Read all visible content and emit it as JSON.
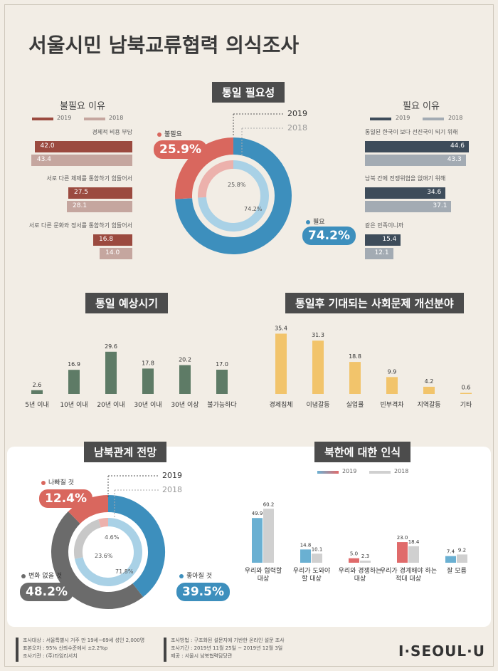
{
  "title": "서울시민 남북교류협력 의식조사",
  "necessity": {
    "title": "통일 필요성",
    "year2019": "2019",
    "year2018": "2018",
    "unneeded_label": "불필요",
    "needed_label": "필요",
    "pill_unneeded": "25.9%",
    "pill_needed": "74.2%",
    "inner_unneeded": "25.8%",
    "inner_needed": "74.2%",
    "color_needed": "#3d8fbd",
    "color_unneeded": "#d9675e"
  },
  "reasons_no": {
    "title": "불필요 이유",
    "legend": [
      "2019",
      "2018"
    ],
    "items": [
      {
        "label": "경제적 비용 부담",
        "v2019": "42.0",
        "v2018": "43.4"
      },
      {
        "label": "서로 다른 체제를 통합하기 힘들어서",
        "v2019": "27.5",
        "v2018": "28.1"
      },
      {
        "label": "서로 다른 문화와 정서를 통합하기 힘들어서",
        "v2019": "16.8",
        "v2018": "14.0"
      }
    ]
  },
  "reasons_yes": {
    "title": "필요 이유",
    "legend": [
      "2019",
      "2018"
    ],
    "items": [
      {
        "label": "통일된 한국이 보다 선진국이 되기 위해",
        "v2019": "44.6",
        "v2018": "43.3"
      },
      {
        "label": "남북 간에 전쟁위협을 없애기 위해",
        "v2019": "34.6",
        "v2018": "37.1"
      },
      {
        "label": "같은 민족이니까",
        "v2019": "15.4",
        "v2018": "12.1"
      }
    ]
  },
  "timing": {
    "title": "통일 예상시기"
  },
  "improve": {
    "title": "통일후 기대되는 사회문제 개선분야"
  },
  "outlook": {
    "title": "남북관계 전망",
    "year2019": "2019",
    "year2018": "2018",
    "worse_label": "나빠질 것",
    "same_label": "변화 없을 것",
    "better_label": "좋아질 것",
    "pill_worse": "12.4%",
    "pill_same": "48.2%",
    "pill_better": "39.5%",
    "inner_worse": "4.6%",
    "inner_same": "23.6%",
    "inner_better": "71.8%"
  },
  "perception": {
    "title": "북한에 대한 인식",
    "legend": [
      "2019",
      "2018"
    ]
  },
  "footer": {
    "left": [
      "조사대상 : 서울특별시 거주 만 19세~69세 성인 2,000명",
      "표본오차 : 95% 신뢰수준에서 ±2.2%p",
      "조사기관 : (주)타임리서치"
    ],
    "right": [
      "조사방법 : 구조화된 설문지에 기반한 온라인 설문 조사",
      "조사기간 : 2019년 11월 25일 ~ 2019년 12월 3일",
      "제공 : 서울시 남북협력담당관"
    ],
    "logo": "I·SEOUL·U"
  },
  "chart_data": [
    {
      "type": "pie",
      "title": "통일 필요성",
      "categories": [
        "필요",
        "불필요"
      ],
      "series": [
        {
          "name": "2019",
          "values": [
            74.2,
            25.9
          ]
        },
        {
          "name": "2018",
          "values": [
            74.2,
            25.8
          ]
        }
      ]
    },
    {
      "type": "bar",
      "title": "불필요 이유",
      "orientation": "horizontal",
      "categories": [
        "경제적 비용 부담",
        "서로 다른 체제를 통합하기 힘들어서",
        "서로 다른 문화와 정서를 통합하기 힘들어서"
      ],
      "series": [
        {
          "name": "2019",
          "values": [
            42.0,
            27.5,
            16.8
          ],
          "color": "#9b4a3f"
        },
        {
          "name": "2018",
          "values": [
            43.4,
            28.1,
            14.0
          ],
          "color": "#c5a69f"
        }
      ]
    },
    {
      "type": "bar",
      "title": "필요 이유",
      "orientation": "horizontal",
      "categories": [
        "통일된 한국이 보다 선진국이 되기 위해",
        "남북 간에 전쟁위협을 없애기 위해",
        "같은 민족이니까"
      ],
      "series": [
        {
          "name": "2019",
          "values": [
            44.6,
            34.6,
            15.4
          ],
          "color": "#3e4c5a"
        },
        {
          "name": "2018",
          "values": [
            43.3,
            37.1,
            12.1
          ],
          "color": "#a3abb3"
        }
      ]
    },
    {
      "type": "bar",
      "title": "통일 예상시기",
      "categories": [
        "5년 이내",
        "10년 이내",
        "20년 이내",
        "30년 이내",
        "30년 이상",
        "불가능하다"
      ],
      "values": [
        2.6,
        16.9,
        29.6,
        17.8,
        20.2,
        17.0
      ],
      "color": "#5e7b66",
      "ylim": [
        0,
        30
      ]
    },
    {
      "type": "bar",
      "title": "통일후 기대되는 사회문제 개선분야",
      "categories": [
        "경제침체",
        "이념갈등",
        "실업률",
        "빈부격차",
        "지역갈등",
        "기타"
      ],
      "values": [
        35.4,
        31.3,
        18.8,
        9.9,
        4.2,
        0.6
      ],
      "color": "#f2c46b",
      "ylim": [
        0,
        36
      ]
    },
    {
      "type": "pie",
      "title": "남북관계 전망",
      "categories": [
        "좋아질 것",
        "변화 없을 것",
        "나빠질 것"
      ],
      "series": [
        {
          "name": "2019",
          "values": [
            39.5,
            48.2,
            12.4
          ]
        },
        {
          "name": "2018",
          "values": [
            71.8,
            23.6,
            4.6
          ]
        }
      ]
    },
    {
      "type": "bar",
      "title": "북한에 대한 인식",
      "categories": [
        "우리와 협력할 대상",
        "우리가 도와야 할 대상",
        "우리와 경쟁하는 대상",
        "우리가 경계해야 하는 적대 대상",
        "잘 모름"
      ],
      "series": [
        {
          "name": "2019",
          "values": [
            49.9,
            14.8,
            5.0,
            23.0,
            7.4
          ]
        },
        {
          "name": "2018",
          "values": [
            60.2,
            10.1,
            2.3,
            18.4,
            9.2
          ]
        }
      ],
      "ylim": [
        0,
        62
      ]
    }
  ]
}
